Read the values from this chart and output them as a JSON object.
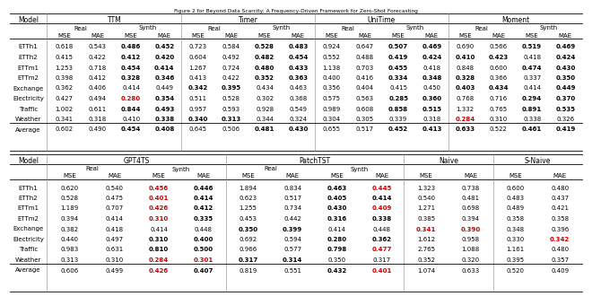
{
  "title": "Figure 2 for Beyond Data Scarcity: A Frequency-Driven Framework for Zero-Shot Forecasting",
  "table1": {
    "groups": [
      "TTM",
      "Timer",
      "UniTime",
      "Moment"
    ],
    "rows": [
      "ETTh1",
      "ETTh2",
      "ETTm1",
      "ETTm2",
      "Exchange",
      "Electricity",
      "Traffic",
      "Weather",
      "Average"
    ],
    "data": {
      "TTM": {
        "Real": {
          "MSE": [
            0.618,
            0.415,
            1.253,
            0.398,
            0.362,
            0.427,
            1.002,
            0.341,
            0.602
          ],
          "MAE": [
            0.543,
            0.422,
            0.718,
            0.412,
            0.406,
            0.494,
            0.611,
            0.318,
            0.49
          ]
        },
        "Synth": {
          "MSE": [
            0.486,
            0.412,
            0.454,
            0.328,
            0.414,
            0.28,
            0.844,
            0.41,
            0.454
          ],
          "MAE": [
            0.452,
            0.42,
            0.414,
            0.346,
            0.449,
            0.354,
            0.493,
            0.338,
            0.408
          ]
        }
      },
      "Timer": {
        "Real": {
          "MSE": [
            0.723,
            0.604,
            1.267,
            0.413,
            0.342,
            0.511,
            0.957,
            0.34,
            0.645
          ],
          "MAE": [
            0.584,
            0.492,
            0.724,
            0.422,
            0.395,
            0.528,
            0.593,
            0.313,
            0.506
          ]
        },
        "Synth": {
          "MSE": [
            0.528,
            0.482,
            0.48,
            0.352,
            0.434,
            0.302,
            0.928,
            0.344,
            0.481
          ],
          "MAE": [
            0.483,
            0.454,
            0.433,
            0.363,
            0.463,
            0.368,
            0.549,
            0.324,
            0.43
          ]
        }
      },
      "UniTime": {
        "Real": {
          "MSE": [
            0.924,
            0.552,
            1.138,
            0.4,
            0.356,
            0.575,
            0.989,
            0.304,
            0.655
          ],
          "MAE": [
            0.647,
            0.488,
            0.703,
            0.416,
            0.404,
            0.563,
            0.608,
            0.305,
            0.517
          ]
        },
        "Synth": {
          "MSE": [
            0.507,
            0.419,
            0.455,
            0.334,
            0.415,
            0.285,
            0.858,
            0.339,
            0.452
          ],
          "MAE": [
            0.469,
            0.424,
            0.418,
            0.348,
            0.45,
            0.36,
            0.515,
            0.318,
            0.413
          ]
        }
      },
      "Moment": {
        "Real": {
          "MSE": [
            0.69,
            0.41,
            0.848,
            0.328,
            0.403,
            0.768,
            1.332,
            0.284,
            0.633
          ],
          "MAE": [
            0.566,
            0.423,
            0.6,
            0.366,
            0.434,
            0.716,
            0.765,
            0.31,
            0.522
          ]
        },
        "Synth": {
          "MSE": [
            0.519,
            0.418,
            0.474,
            0.337,
            0.414,
            0.294,
            0.891,
            0.338,
            0.461
          ],
          "MAE": [
            0.469,
            0.424,
            0.43,
            0.35,
            0.449,
            0.37,
            0.535,
            0.326,
            0.419
          ]
        }
      }
    },
    "bold": {
      "TTM": {
        "Synth_MSE": [
          1,
          1,
          1,
          1,
          0,
          1,
          1,
          0,
          1
        ],
        "Synth_MAE": [
          1,
          1,
          1,
          1,
          0,
          1,
          1,
          1,
          1
        ]
      },
      "Timer": {
        "Real_MSE": [
          0,
          0,
          0,
          0,
          1,
          0,
          0,
          1,
          0
        ],
        "Real_MAE": [
          0,
          0,
          0,
          0,
          1,
          0,
          0,
          1,
          0
        ],
        "Synth_MSE": [
          1,
          1,
          1,
          1,
          0,
          0,
          0,
          0,
          1
        ],
        "Synth_MAE": [
          1,
          1,
          1,
          1,
          0,
          0,
          0,
          0,
          1
        ]
      },
      "UniTime": {
        "Synth_MSE": [
          1,
          1,
          1,
          1,
          0,
          1,
          1,
          0,
          1
        ],
        "Synth_MAE": [
          1,
          1,
          0,
          1,
          0,
          1,
          1,
          0,
          1
        ]
      },
      "Moment": {
        "Real_MSE": [
          0,
          1,
          0,
          1,
          1,
          0,
          0,
          1,
          1
        ],
        "Real_MAE": [
          0,
          1,
          0,
          0,
          1,
          0,
          0,
          0,
          0
        ],
        "Synth_MSE": [
          1,
          0,
          1,
          0,
          0,
          1,
          1,
          0,
          1
        ],
        "Synth_MAE": [
          1,
          1,
          1,
          1,
          1,
          1,
          1,
          0,
          1
        ]
      }
    },
    "red_cells": [
      [
        "TTM",
        "Synth",
        "MSE",
        5
      ],
      [
        "Moment",
        "Real",
        "MSE",
        7
      ]
    ]
  },
  "table2": {
    "groups": [
      "GPT4TS",
      "PatchTST",
      "Naive",
      "S-Naive"
    ],
    "rows": [
      "ETTh1",
      "ETTh2",
      "ETTm1",
      "ETTm2",
      "Exchange",
      "Electricity",
      "Traffic",
      "Weather",
      "Average"
    ],
    "data": {
      "GPT4TS": {
        "Real": {
          "MSE": [
            0.62,
            0.528,
            1.189,
            0.394,
            0.382,
            0.44,
            0.983,
            0.313,
            0.606
          ],
          "MAE": [
            0.54,
            0.475,
            0.707,
            0.414,
            0.418,
            0.497,
            0.631,
            0.31,
            0.499
          ]
        },
        "Synth": {
          "MSE": [
            0.456,
            0.401,
            0.426,
            0.31,
            0.414,
            0.31,
            0.81,
            0.284,
            0.426
          ],
          "MAE": [
            0.446,
            0.414,
            0.412,
            0.335,
            0.448,
            0.4,
            0.5,
            0.301,
            0.407
          ]
        }
      },
      "PatchTST": {
        "Real": {
          "MSE": [
            1.894,
            0.623,
            1.255,
            0.453,
            0.35,
            0.692,
            0.966,
            0.317,
            0.819
          ],
          "MAE": [
            0.834,
            0.517,
            0.734,
            0.442,
            0.399,
            0.594,
            0.577,
            0.314,
            0.551
          ]
        },
        "Synth": {
          "MSE": [
            0.463,
            0.405,
            0.43,
            0.316,
            0.414,
            0.28,
            0.798,
            0.35,
            0.432
          ],
          "MAE": [
            0.445,
            0.414,
            0.409,
            0.338,
            0.448,
            0.362,
            0.477,
            0.317,
            0.401
          ]
        }
      },
      "Naive": {
        "MSE": [
          1.323,
          0.54,
          1.271,
          0.385,
          0.341,
          1.612,
          2.765,
          0.352,
          1.074
        ],
        "MAE": [
          0.738,
          0.481,
          0.698,
          0.394,
          0.39,
          0.958,
          1.088,
          0.32,
          0.633
        ]
      },
      "S-Naive": {
        "MSE": [
          0.6,
          0.483,
          0.489,
          0.358,
          0.348,
          0.33,
          1.161,
          0.395,
          0.52
        ],
        "MAE": [
          0.48,
          0.437,
          0.421,
          0.358,
          0.396,
          0.342,
          0.48,
          0.357,
          0.409
        ]
      }
    },
    "bold": {
      "GPT4TS": {
        "Synth_MSE": [
          1,
          1,
          1,
          1,
          0,
          1,
          1,
          1,
          1
        ],
        "Synth_MAE": [
          1,
          1,
          1,
          1,
          0,
          1,
          1,
          1,
          1
        ]
      },
      "PatchTST": {
        "Real_MSE": [
          0,
          0,
          0,
          0,
          1,
          0,
          0,
          1,
          0
        ],
        "Real_MAE": [
          0,
          0,
          0,
          0,
          1,
          0,
          0,
          1,
          0
        ],
        "Synth_MSE": [
          1,
          1,
          1,
          1,
          0,
          1,
          1,
          0,
          1
        ],
        "Synth_MAE": [
          1,
          1,
          1,
          1,
          0,
          1,
          1,
          0,
          1
        ]
      },
      "Naive": {
        "MSE": [
          0,
          0,
          0,
          0,
          1,
          0,
          0,
          0,
          0
        ],
        "MAE": [
          0,
          0,
          0,
          0,
          1,
          0,
          0,
          0,
          0
        ]
      },
      "S-Naive": {
        "MSE": [
          0,
          0,
          0,
          0,
          0,
          0,
          0,
          0,
          0
        ],
        "MAE": [
          0,
          0,
          0,
          0,
          0,
          1,
          0,
          0,
          0
        ]
      }
    },
    "red_cells": [
      [
        "GPT4TS",
        "Synth",
        "MSE",
        0
      ],
      [
        "GPT4TS",
        "Synth",
        "MSE",
        1
      ],
      [
        "GPT4TS",
        "Synth",
        "MSE",
        2
      ],
      [
        "GPT4TS",
        "Synth",
        "MSE",
        3
      ],
      [
        "GPT4TS",
        "Synth",
        "MSE",
        7
      ],
      [
        "GPT4TS",
        "Synth",
        "MSE",
        8
      ],
      [
        "GPT4TS",
        "Synth",
        "MAE",
        7
      ],
      [
        "PatchTST",
        "Synth",
        "MAE",
        0
      ],
      [
        "PatchTST",
        "Synth",
        "MAE",
        2
      ],
      [
        "PatchTST",
        "Synth",
        "MAE",
        6
      ],
      [
        "PatchTST",
        "Synth",
        "MAE",
        8
      ],
      [
        "Naive",
        null,
        "MSE",
        4
      ],
      [
        "Naive",
        null,
        "MAE",
        4
      ],
      [
        "S-Naive",
        null,
        "MAE",
        5
      ]
    ]
  },
  "fs_header": 5.5,
  "fs_data": 5.0,
  "black": "#000000",
  "red": "#CC0000",
  "gray_line": "#888888"
}
